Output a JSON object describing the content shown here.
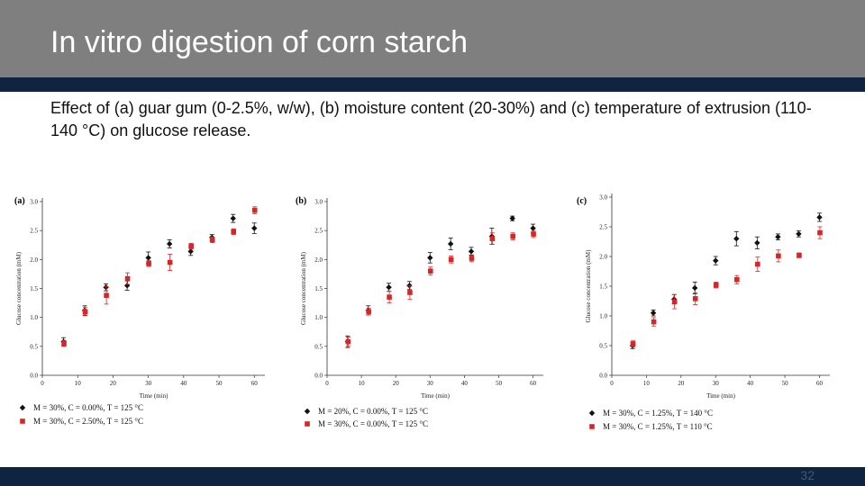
{
  "slide": {
    "title": "In vitro digestion of corn starch",
    "subtitle": "Effect of (a) guar gum (0-2.5%, w/w), (b) moisture content (20-30%) and (c) temperature of extrusion (110-140 °C) on glucose release.",
    "page_number": "32"
  },
  "chart_data": [
    {
      "type": "scatter",
      "panel_label": "(a)",
      "xlabel": "Time (min)",
      "ylabel": "Glucose concentration (mM)",
      "xlim": [
        0,
        63
      ],
      "ylim": [
        0,
        3.0
      ],
      "x_ticks": [
        "0",
        "10",
        "20",
        "30",
        "40",
        "50",
        "60"
      ],
      "y_ticks": [
        "0.0",
        "0.5",
        "1.0",
        "1.5",
        "2.0",
        "2.5",
        "3.0"
      ],
      "legend": "bottom-left",
      "series": [
        {
          "name": "M = 30%, C = 0.00%, T = 125 °C",
          "color": "#111111",
          "marker": "diamond",
          "x": [
            6,
            12,
            18,
            24,
            30,
            36,
            42,
            48,
            54,
            60
          ],
          "y": [
            0.58,
            1.12,
            1.52,
            1.55,
            2.03,
            2.27,
            2.14,
            2.38,
            2.71,
            2.54
          ],
          "err": [
            0.07,
            0.08,
            0.06,
            0.08,
            0.1,
            0.07,
            0.07,
            0.05,
            0.07,
            0.09
          ]
        },
        {
          "name": "M = 30%, C = 2.50%, T = 125 °C",
          "color": "#d62728",
          "marker": "square",
          "x": [
            6,
            12,
            18,
            24,
            30,
            36,
            42,
            48,
            54,
            60
          ],
          "y": [
            0.55,
            1.1,
            1.38,
            1.67,
            1.93,
            1.95,
            2.23,
            2.34,
            2.48,
            2.85
          ],
          "err": [
            0.05,
            0.07,
            0.15,
            0.1,
            0.05,
            0.14,
            0.05,
            0.05,
            0.05,
            0.06
          ]
        }
      ]
    },
    {
      "type": "scatter",
      "panel_label": "(b)",
      "xlabel": "Time (min)",
      "ylabel": "Glucose concentration (mM)",
      "xlim": [
        0,
        63
      ],
      "ylim": [
        0,
        3.0
      ],
      "x_ticks": [
        "0",
        "10",
        "20",
        "30",
        "40",
        "50",
        "60"
      ],
      "y_ticks": [
        "0.0",
        "0.5",
        "1.0",
        "1.5",
        "2.0",
        "2.5",
        "3.0"
      ],
      "legend": "bottom-left",
      "series": [
        {
          "name": "M = 20%, C = 0.00%, T = 125 °C",
          "color": "#111111",
          "marker": "diamond",
          "x": [
            6,
            12,
            18,
            24,
            30,
            36,
            42,
            48,
            54,
            60
          ],
          "y": [
            0.58,
            1.12,
            1.52,
            1.55,
            2.03,
            2.27,
            2.14,
            2.4,
            2.71,
            2.54
          ],
          "err": [
            0.1,
            0.08,
            0.07,
            0.07,
            0.09,
            0.1,
            0.07,
            0.14,
            0.04,
            0.07
          ]
        },
        {
          "name": "M = 30%, C = 0.00%, T = 125 °C",
          "color": "#d62728",
          "marker": "square",
          "x": [
            6,
            12,
            18,
            24,
            30,
            36,
            42,
            48,
            54,
            60
          ],
          "y": [
            0.58,
            1.1,
            1.35,
            1.43,
            1.8,
            2.0,
            2.02,
            2.36,
            2.4,
            2.44
          ],
          "err": [
            0.08,
            0.06,
            0.1,
            0.12,
            0.07,
            0.06,
            0.06,
            0.1,
            0.06,
            0.06
          ]
        }
      ]
    },
    {
      "type": "scatter",
      "panel_label": "(c)",
      "xlabel": "Time (min)",
      "ylabel": "Glucose concentration (mM)",
      "xlim": [
        0,
        63
      ],
      "ylim": [
        0,
        3.0
      ],
      "x_ticks": [
        "0",
        "10",
        "20",
        "30",
        "40",
        "50",
        "60"
      ],
      "y_ticks": [
        "0.0",
        "0.5",
        "1.0",
        "1.5",
        "2.0",
        "2.5",
        "3.0"
      ],
      "legend": "bottom-left",
      "series": [
        {
          "name": "M = 30%, C = 1.25%, T = 140 °C",
          "color": "#111111",
          "marker": "diamond",
          "x": [
            6,
            12,
            18,
            24,
            30,
            36,
            42,
            48,
            54,
            60
          ],
          "y": [
            0.5,
            1.05,
            1.28,
            1.47,
            1.93,
            2.3,
            2.23,
            2.33,
            2.38,
            2.66
          ],
          "err": [
            0.05,
            0.05,
            0.08,
            0.1,
            0.07,
            0.12,
            0.1,
            0.05,
            0.05,
            0.07
          ]
        },
        {
          "name": "M = 30%, C = 1.25%, T = 110 °C",
          "color": "#d62728",
          "marker": "square",
          "x": [
            6,
            12,
            18,
            24,
            30,
            36,
            42,
            48,
            54,
            60
          ],
          "y": [
            0.53,
            0.9,
            1.24,
            1.29,
            1.52,
            1.61,
            1.87,
            2.01,
            2.02,
            2.4
          ],
          "err": [
            0.05,
            0.07,
            0.12,
            0.1,
            0.05,
            0.07,
            0.12,
            0.1,
            0.04,
            0.1
          ]
        }
      ]
    }
  ]
}
